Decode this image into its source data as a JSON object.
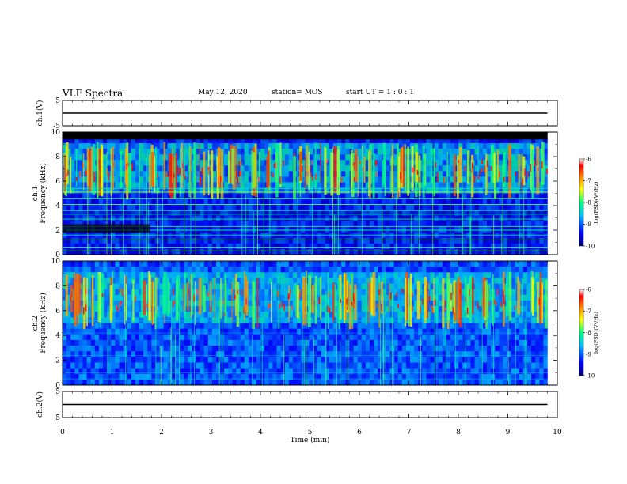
{
  "header": {
    "title": "VLF Spectra",
    "date": "May 12, 2020",
    "station": "station= MOS",
    "start": "start  UT  =   1 : 0  : 1"
  },
  "chart_data": [
    {
      "type": "line",
      "name": "ch1-voltage",
      "ylabel": "ch.1(V)",
      "ylim": [
        -5,
        5
      ],
      "yticks": [
        "5",
        "-5"
      ],
      "x": [
        0,
        9.8
      ],
      "values": [
        0,
        0
      ],
      "xlim": [
        0,
        10
      ]
    },
    {
      "type": "heatmap",
      "name": "ch1-spectrogram",
      "ylabel_line1": "ch.1",
      "ylabel_line2": "Frequency (kHz)",
      "ylim": [
        0,
        10
      ],
      "yticks": [
        "0",
        "2",
        "4",
        "6",
        "8",
        "10"
      ],
      "xlim": [
        0,
        10
      ],
      "data_xmax": 9.8,
      "colorbar": {
        "label": "log(PSD)(V²/Hz)",
        "range": [
          -10,
          -6
        ],
        "ticks": [
          "-6",
          "-7",
          "-8",
          "-9",
          "-10"
        ],
        "colors": [
          "#000080",
          "#0000ff",
          "#00bfff",
          "#00ff80",
          "#ffff00",
          "#ff8000",
          "#ff0000",
          "#ffffff"
        ]
      }
    },
    {
      "type": "heatmap",
      "name": "ch2-spectrogram",
      "ylabel_line1": "ch.2",
      "ylabel_line2": "Frequency (kHz)",
      "ylim": [
        0,
        10
      ],
      "yticks": [
        "0",
        "2",
        "4",
        "6",
        "8",
        "10"
      ],
      "xlim": [
        0,
        10
      ],
      "data_xmax": 9.8,
      "colorbar": {
        "label": "log(PSD)(V²/Hz)",
        "range": [
          -10,
          -6
        ],
        "ticks": [
          "-6",
          "-7",
          "-8",
          "-9",
          "-10"
        ],
        "colors": [
          "#000080",
          "#0000ff",
          "#00bfff",
          "#00ff80",
          "#ffff00",
          "#ff8000",
          "#ff0000",
          "#ffffff"
        ]
      }
    },
    {
      "type": "line",
      "name": "ch2-voltage",
      "ylabel": "ch.2(V)",
      "ylim": [
        -5,
        5
      ],
      "yticks": [
        "5",
        "-5"
      ],
      "x": [
        0,
        9.8
      ],
      "values": [
        0,
        0
      ],
      "xlim": [
        0,
        10
      ],
      "xlabel": "Time (min)",
      "xticks": [
        "0",
        "1",
        "2",
        "3",
        "4",
        "5",
        "6",
        "7",
        "8",
        "9",
        "10"
      ]
    }
  ]
}
